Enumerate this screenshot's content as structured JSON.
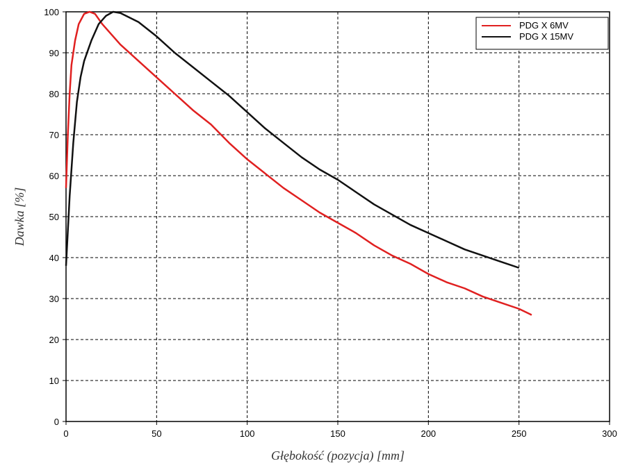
{
  "chart_data": {
    "type": "line",
    "xlabel": "Głębokość (pozycja) [mm]",
    "ylabel": "Dawka [%]",
    "xlim": [
      0,
      300
    ],
    "xticks": [
      0,
      50,
      100,
      150,
      200,
      250,
      300
    ],
    "ylim": [
      0,
      100
    ],
    "yticks": [
      0,
      10,
      20,
      30,
      40,
      50,
      60,
      70,
      80,
      90,
      100
    ],
    "grid": true,
    "legend": "upper right",
    "series": [
      {
        "name": "PDG X 6MV",
        "color": "#e02020",
        "x": [
          0,
          1,
          2,
          3,
          5,
          7,
          10,
          13,
          16,
          20,
          30,
          40,
          50,
          60,
          70,
          80,
          90,
          100,
          110,
          120,
          130,
          140,
          150,
          160,
          170,
          180,
          190,
          200,
          210,
          220,
          230,
          240,
          250,
          257
        ],
        "values": [
          57,
          70,
          80,
          87,
          93,
          97,
          99.5,
          100,
          99.5,
          97,
          92,
          88,
          84,
          80,
          76,
          72.5,
          68,
          64,
          60.5,
          57,
          54,
          51,
          48.5,
          46,
          43,
          40.5,
          38.5,
          36,
          34,
          32.5,
          30.5,
          29,
          27.5,
          26
        ]
      },
      {
        "name": "PDG X 15MV",
        "color": "#111111",
        "x": [
          0,
          2,
          4,
          6,
          8,
          10,
          14,
          18,
          22,
          26,
          30,
          40,
          50,
          60,
          70,
          80,
          90,
          100,
          110,
          120,
          130,
          140,
          150,
          160,
          170,
          180,
          190,
          200,
          210,
          220,
          230,
          240,
          250
        ],
        "values": [
          38,
          55,
          68,
          78,
          84,
          88,
          93,
          97,
          99,
          100,
          99.7,
          97.5,
          94,
          90,
          86.5,
          83,
          79.5,
          75.5,
          71.5,
          68,
          64.5,
          61.5,
          59,
          56,
          53,
          50.5,
          48,
          46,
          44,
          42,
          40.5,
          39,
          37.5
        ]
      }
    ]
  }
}
